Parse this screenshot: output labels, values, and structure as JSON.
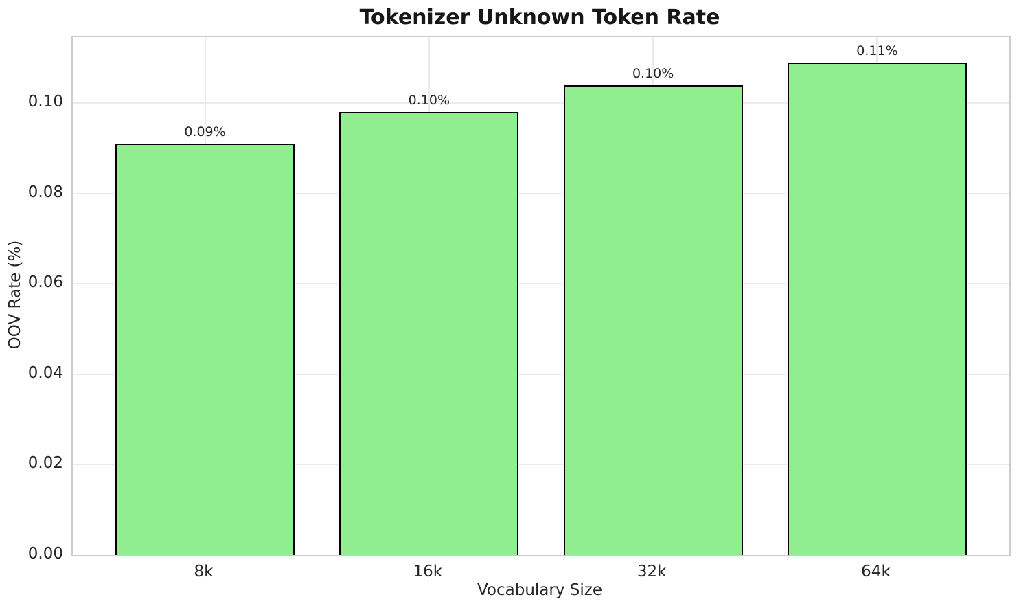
{
  "chart_data": {
    "type": "bar",
    "title": "Tokenizer Unknown Token Rate",
    "xlabel": "Vocabulary Size",
    "ylabel": "OOV Rate (%)",
    "categories": [
      "8k",
      "16k",
      "32k",
      "64k"
    ],
    "values": [
      0.091,
      0.098,
      0.104,
      0.109
    ],
    "bar_labels": [
      "0.09%",
      "0.10%",
      "0.10%",
      "0.11%"
    ],
    "yticks": [
      0.0,
      0.02,
      0.04,
      0.06,
      0.08,
      0.1
    ],
    "ytick_labels": [
      "0.00",
      "0.02",
      "0.04",
      "0.06",
      "0.08",
      "0.10"
    ],
    "ylim": [
      0,
      0.1146
    ],
    "bar_width_fraction": 0.8,
    "grid": true,
    "legend_position": "none",
    "colors": {
      "bar_fill": "#90EE90",
      "bar_edge": "#000000",
      "grid": "#ebebeb",
      "spine": "#cccccc",
      "text": "#262626",
      "title_text": "#171717",
      "background": "#ffffff"
    }
  }
}
